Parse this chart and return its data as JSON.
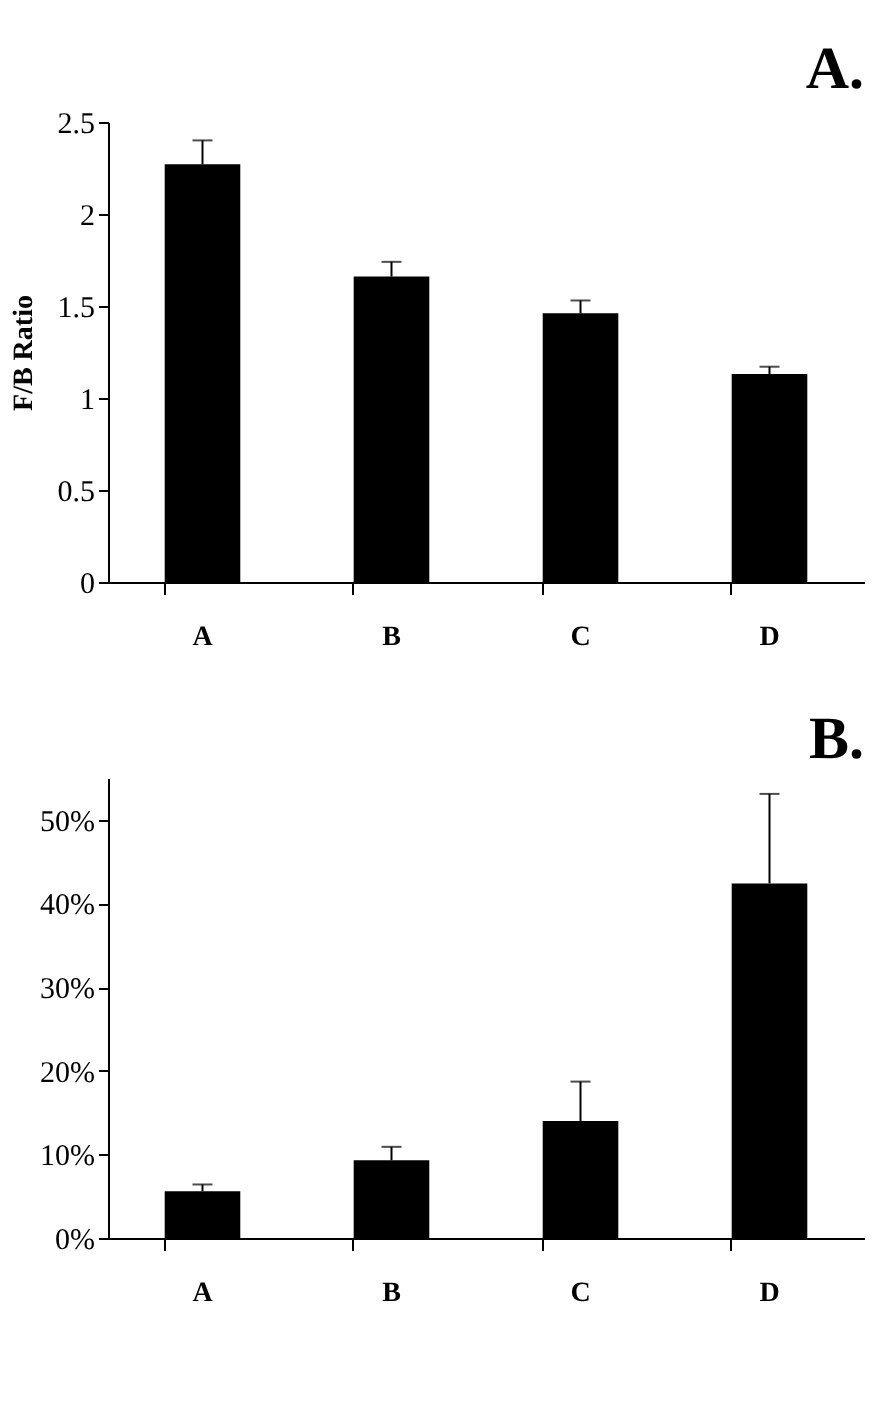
{
  "chart_data": [
    {
      "type": "bar",
      "title": "A.",
      "ylabel": "F/B Ratio",
      "categories": [
        "A",
        "B",
        "C",
        "D"
      ],
      "values": [
        2.27,
        1.66,
        1.46,
        1.13
      ],
      "errors": [
        [
          2.27,
          2.4
        ],
        [
          1.66,
          1.74
        ],
        [
          1.46,
          1.53
        ],
        [
          1.13,
          1.17
        ]
      ],
      "color": "#000000",
      "ylim": [
        0,
        2.5
      ],
      "yticks": [
        0,
        0.5,
        1,
        1.5,
        2,
        2.5
      ],
      "grid": false
    },
    {
      "type": "bar",
      "title": "B.",
      "categories": [
        "A",
        "B",
        "C",
        "D"
      ],
      "values": [
        5.6,
        9.3,
        14.0,
        42.4
      ],
      "errors": [
        [
          5.6,
          6.4
        ],
        [
          9.3,
          10.9
        ],
        [
          14.0,
          18.7
        ],
        [
          42.4,
          53.1
        ]
      ],
      "color": "#000000",
      "ylim": [
        0,
        55
      ],
      "yticks": [
        {
          "value": 0,
          "label": "0%"
        },
        {
          "value": 10,
          "label": "10%"
        },
        {
          "value": 20,
          "label": "20%"
        },
        {
          "value": 30,
          "label": "30%"
        },
        {
          "value": 40,
          "label": "40%"
        },
        {
          "value": 50,
          "label": "50%"
        }
      ],
      "grid": false
    }
  ]
}
